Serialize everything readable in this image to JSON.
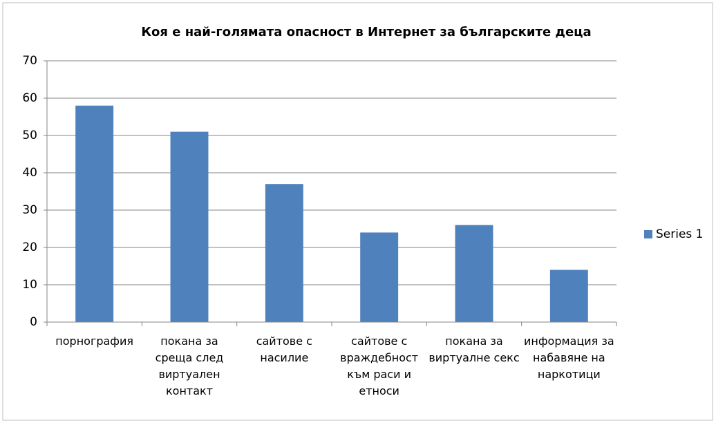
{
  "chart_data": {
    "type": "bar",
    "title": "Коя е най-голямата опасност в Интернет за българските деца",
    "categories": [
      "порнография",
      "покана за среща след виртуален контакт",
      "сайтове с насилие",
      "сайтове с враждебност към раси и етноси",
      "покана за виртуалне секс",
      "информация за набавяне на наркотици"
    ],
    "series": [
      {
        "name": "Series 1",
        "color": "#4f81bd",
        "values": [
          58,
          51,
          37,
          24,
          26,
          14
        ]
      }
    ],
    "ylim": [
      0,
      70
    ],
    "yticks": [
      0,
      10,
      20,
      30,
      40,
      50,
      60,
      70
    ],
    "grid": true,
    "legend": "right"
  }
}
